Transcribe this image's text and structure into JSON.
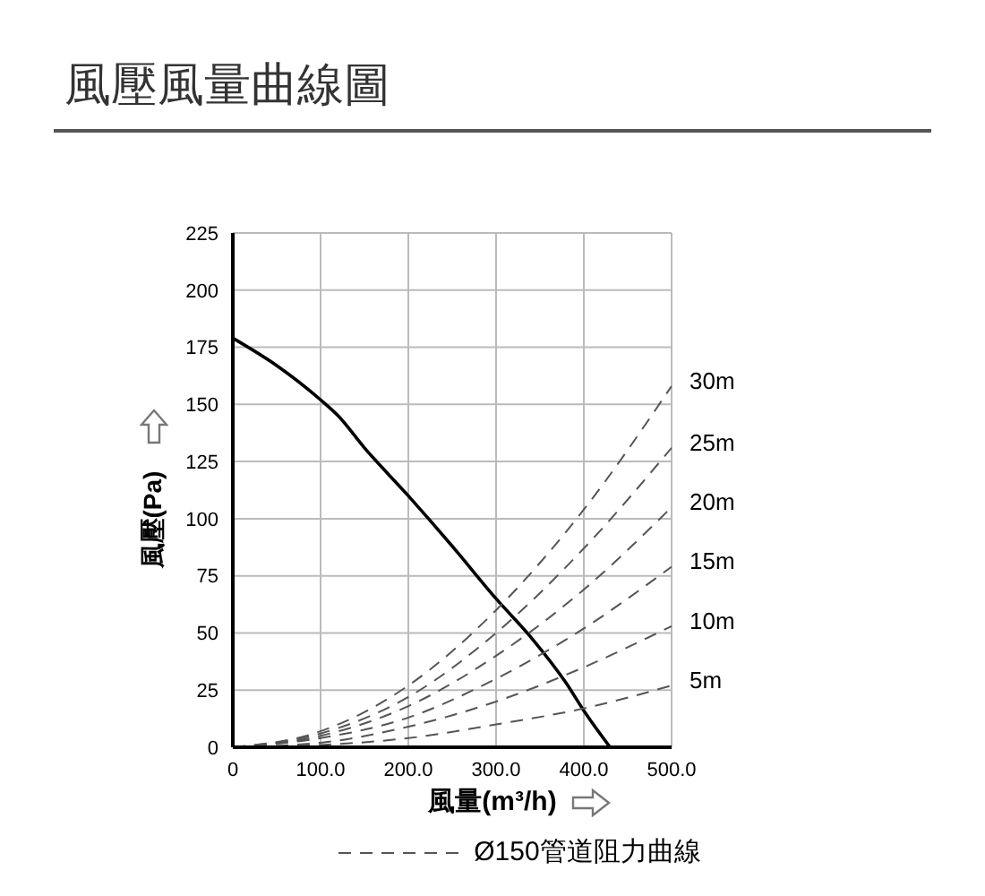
{
  "chart_data": {
    "type": "line",
    "title": "風壓風量曲線圖",
    "xlabel": "風量(m³/h)",
    "ylabel": "風壓(Pa)",
    "legend_title": "Ø150管道阻力曲線",
    "legend": "bottom",
    "xlim": [
      0,
      500
    ],
    "ylim": [
      0,
      225
    ],
    "xticks": [
      0,
      {
        "value": 100,
        "label": "100.0"
      },
      {
        "value": 200,
        "label": "200.0"
      },
      {
        "value": 300,
        "label": "300.0"
      },
      {
        "value": 400,
        "label": "400.0"
      },
      {
        "value": 500,
        "label": "500.0"
      }
    ],
    "yticks": [
      0,
      25,
      50,
      75,
      100,
      125,
      150,
      175,
      200,
      225
    ],
    "grid": true,
    "marker": "none",
    "series": [
      {
        "color": "#000000",
        "line_style": "solid",
        "x": [
          0,
          50,
          100,
          120,
          150,
          200,
          250,
          300,
          340,
          380,
          400,
          430
        ],
        "values": [
          179,
          167,
          152,
          145,
          131,
          110,
          88,
          65,
          48,
          28,
          16,
          0
        ]
      },
      {
        "name": "30m",
        "color": "#555555",
        "line_style": "dashed",
        "x": [
          0,
          100,
          200,
          300,
          400,
          500
        ],
        "values": [
          0,
          7,
          27,
          60,
          104,
          158
        ]
      },
      {
        "name": "25m",
        "color": "#555555",
        "line_style": "dashed",
        "x": [
          0,
          100,
          200,
          300,
          400,
          500
        ],
        "values": [
          0,
          6,
          22,
          50,
          87,
          131
        ]
      },
      {
        "name": "20m",
        "color": "#555555",
        "line_style": "dashed",
        "x": [
          0,
          100,
          200,
          300,
          400,
          500
        ],
        "values": [
          0,
          5,
          18,
          40,
          69,
          105
        ]
      },
      {
        "name": "15m",
        "color": "#555555",
        "line_style": "dashed",
        "x": [
          0,
          100,
          200,
          300,
          400,
          500
        ],
        "values": [
          0,
          4,
          13,
          30,
          52,
          79
        ]
      },
      {
        "name": "10m",
        "color": "#555555",
        "line_style": "dashed",
        "x": [
          0,
          100,
          200,
          300,
          400,
          500
        ],
        "values": [
          0,
          2,
          9,
          20,
          35,
          53
        ]
      },
      {
        "name": "5m",
        "color": "#555555",
        "line_style": "dashed",
        "x": [
          0,
          100,
          200,
          300,
          400,
          500
        ],
        "values": [
          0,
          1,
          4,
          10,
          17,
          27
        ]
      }
    ]
  }
}
